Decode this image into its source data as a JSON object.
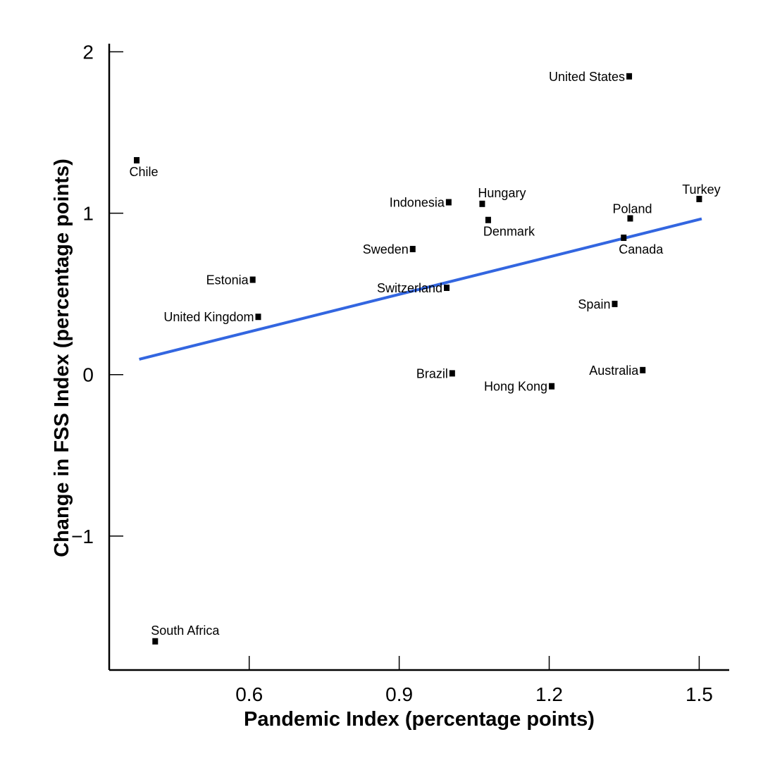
{
  "chart_data": {
    "type": "scatter",
    "title": "",
    "xlabel": "Pandemic Index (percentage points)",
    "ylabel": "Change in FSS Index (percentage points)",
    "xlim": [
      0.32,
      1.56
    ],
    "ylim": [
      -1.83,
      2.05
    ],
    "xticks": [
      0.6,
      0.9,
      1.2,
      1.5
    ],
    "xtick_labels": [
      "0.6",
      "0.9",
      "1.2",
      "1.5"
    ],
    "yticks": [
      2,
      1,
      0,
      -1
    ],
    "ytick_labels": [
      "2",
      "1",
      "0",
      "−1"
    ],
    "grid": false,
    "legend": "none",
    "points": [
      {
        "label": "United States",
        "x": 1.36,
        "y": 1.85,
        "label_pos": "left"
      },
      {
        "label": "Chile",
        "x": 0.375,
        "y": 1.33,
        "label_pos": "below"
      },
      {
        "label": "Turkey",
        "x": 1.5,
        "y": 1.09,
        "label_pos": "above"
      },
      {
        "label": "Indonesia",
        "x": 0.999,
        "y": 1.07,
        "label_pos": "left"
      },
      {
        "label": "Hungary",
        "x": 1.066,
        "y": 1.06,
        "label_pos": "above-right"
      },
      {
        "label": "Poland",
        "x": 1.362,
        "y": 0.97,
        "label_pos": "above"
      },
      {
        "label": "Denmark",
        "x": 1.078,
        "y": 0.96,
        "label_pos": "below-right"
      },
      {
        "label": "Canada",
        "x": 1.349,
        "y": 0.85,
        "label_pos": "below-right"
      },
      {
        "label": "Sweden",
        "x": 0.927,
        "y": 0.78,
        "label_pos": "left"
      },
      {
        "label": "Estonia",
        "x": 0.607,
        "y": 0.59,
        "label_pos": "left"
      },
      {
        "label": "Switzerland",
        "x": 0.995,
        "y": 0.54,
        "label_pos": "left"
      },
      {
        "label": "Spain",
        "x": 1.331,
        "y": 0.44,
        "label_pos": "left"
      },
      {
        "label": "United Kingdom",
        "x": 0.618,
        "y": 0.36,
        "label_pos": "left"
      },
      {
        "label": "Australia",
        "x": 1.387,
        "y": 0.03,
        "label_pos": "left"
      },
      {
        "label": "Brazil",
        "x": 1.006,
        "y": 0.01,
        "label_pos": "left"
      },
      {
        "label": "Hong Kong",
        "x": 1.205,
        "y": -0.07,
        "label_pos": "left"
      },
      {
        "label": "South Africa",
        "x": 0.412,
        "y": -1.65,
        "label_pos": "above-right"
      }
    ],
    "trendline": {
      "x": [
        0.38,
        1.505
      ],
      "y": [
        0.095,
        0.965
      ],
      "color": "#3366e0"
    },
    "marker_color": "#000000"
  }
}
